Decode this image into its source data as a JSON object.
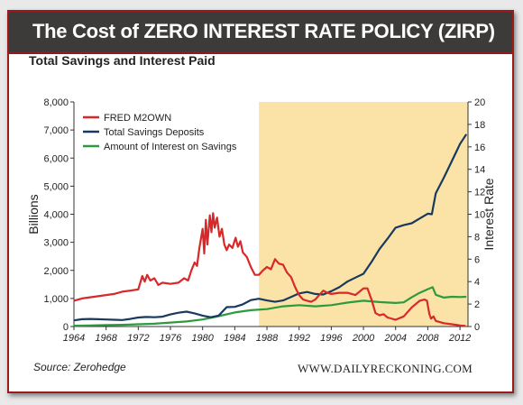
{
  "header": {
    "title": "The Cost of ZERO INTEREST RATE POLICY (ZIRP)"
  },
  "chart_data": {
    "type": "line",
    "title": "Total Savings and Interest Paid",
    "ylabel": "Billions",
    "y2label": "Interest Rate",
    "xlim": [
      1964,
      2013
    ],
    "ylim": [
      0,
      8000
    ],
    "y2lim": [
      0,
      20
    ],
    "x_ticks": [
      "1964",
      "1968",
      "1972",
      "1976",
      "1980",
      "1984",
      "1988",
      "1992",
      "1996",
      "2000",
      "2004",
      "2008",
      "2012"
    ],
    "y_ticks": [
      "0",
      "1,000",
      "2,000",
      "3,000",
      "4,000",
      "5,000",
      "6,000",
      "7,000",
      "8,000"
    ],
    "y2_ticks": [
      "0",
      "2",
      "4",
      "6",
      "8",
      "10",
      "12",
      "14",
      "16",
      "18",
      "20"
    ],
    "highlight": {
      "from": 1987,
      "to": 2013,
      "color": "#fbe3a8"
    },
    "legend_position": "top-left",
    "series": [
      {
        "name": "FRED M2OWN",
        "color": "#d8282a",
        "axis": "right",
        "points": [
          [
            1964,
            2.3
          ],
          [
            1965,
            2.5
          ],
          [
            1966,
            2.6
          ],
          [
            1967,
            2.7
          ],
          [
            1968,
            2.8
          ],
          [
            1969,
            2.9
          ],
          [
            1970,
            3.1
          ],
          [
            1971,
            3.2
          ],
          [
            1972,
            3.3
          ],
          [
            1972.5,
            4.5
          ],
          [
            1972.8,
            4.0
          ],
          [
            1973.1,
            4.6
          ],
          [
            1973.5,
            4.1
          ],
          [
            1974,
            4.3
          ],
          [
            1974.5,
            3.7
          ],
          [
            1975,
            3.9
          ],
          [
            1976,
            3.8
          ],
          [
            1977,
            3.9
          ],
          [
            1977.7,
            4.3
          ],
          [
            1978.2,
            4.1
          ],
          [
            1978.6,
            5.0
          ],
          [
            1979,
            5.7
          ],
          [
            1979.3,
            5.4
          ],
          [
            1979.6,
            7.0
          ],
          [
            1980,
            8.7
          ],
          [
            1980.2,
            6.5
          ],
          [
            1980.4,
            9.5
          ],
          [
            1980.6,
            7.3
          ],
          [
            1980.9,
            9.9
          ],
          [
            1981.1,
            8.4
          ],
          [
            1981.3,
            10.1
          ],
          [
            1981.5,
            8.8
          ],
          [
            1981.8,
            9.7
          ],
          [
            1982.1,
            8.0
          ],
          [
            1982.4,
            8.7
          ],
          [
            1982.7,
            7.3
          ],
          [
            1983,
            6.8
          ],
          [
            1983.3,
            7.3
          ],
          [
            1983.7,
            7.0
          ],
          [
            1984.1,
            7.9
          ],
          [
            1984.4,
            7.1
          ],
          [
            1984.7,
            7.6
          ],
          [
            1985,
            6.6
          ],
          [
            1985.5,
            6.2
          ],
          [
            1986,
            5.3
          ],
          [
            1986.5,
            4.6
          ],
          [
            1987,
            4.6
          ],
          [
            1987.5,
            5.0
          ],
          [
            1988,
            5.3
          ],
          [
            1988.5,
            5.1
          ],
          [
            1989,
            6.0
          ],
          [
            1989.5,
            5.6
          ],
          [
            1990,
            5.5
          ],
          [
            1990.5,
            4.8
          ],
          [
            1991,
            4.4
          ],
          [
            1991.5,
            3.5
          ],
          [
            1992,
            2.8
          ],
          [
            1992.5,
            2.4
          ],
          [
            1993,
            2.3
          ],
          [
            1993.5,
            2.2
          ],
          [
            1994,
            2.4
          ],
          [
            1994.5,
            2.8
          ],
          [
            1995,
            3.2
          ],
          [
            1995.5,
            3.0
          ],
          [
            1996,
            2.9
          ],
          [
            1997,
            3.0
          ],
          [
            1998,
            3.0
          ],
          [
            1999,
            2.8
          ],
          [
            2000,
            3.4
          ],
          [
            2000.5,
            3.4
          ],
          [
            2001,
            2.4
          ],
          [
            2001.5,
            1.2
          ],
          [
            2002,
            1.0
          ],
          [
            2002.5,
            1.1
          ],
          [
            2003,
            0.8
          ],
          [
            2004,
            0.6
          ],
          [
            2005,
            0.9
          ],
          [
            2006,
            1.7
          ],
          [
            2007,
            2.3
          ],
          [
            2007.6,
            2.4
          ],
          [
            2007.9,
            2.3
          ],
          [
            2008.2,
            1.1
          ],
          [
            2008.4,
            0.7
          ],
          [
            2008.7,
            0.9
          ],
          [
            2009,
            0.5
          ],
          [
            2010,
            0.3
          ],
          [
            2011,
            0.2
          ],
          [
            2012,
            0.1
          ],
          [
            2012.7,
            0.05
          ]
        ]
      },
      {
        "name": "Total Savings Deposits",
        "color": "#173a5e",
        "axis": "left",
        "points": [
          [
            1964,
            220
          ],
          [
            1965,
            260
          ],
          [
            1966,
            270
          ],
          [
            1967,
            260
          ],
          [
            1968,
            250
          ],
          [
            1969,
            240
          ],
          [
            1970,
            230
          ],
          [
            1971,
            270
          ],
          [
            1972,
            320
          ],
          [
            1973,
            340
          ],
          [
            1974,
            330
          ],
          [
            1975,
            350
          ],
          [
            1976,
            430
          ],
          [
            1977,
            490
          ],
          [
            1978,
            530
          ],
          [
            1979,
            470
          ],
          [
            1980,
            390
          ],
          [
            1981,
            330
          ],
          [
            1982,
            390
          ],
          [
            1983,
            690
          ],
          [
            1984,
            700
          ],
          [
            1985,
            790
          ],
          [
            1986,
            940
          ],
          [
            1987,
            990
          ],
          [
            1988,
            930
          ],
          [
            1989,
            880
          ],
          [
            1990,
            930
          ],
          [
            1991,
            1050
          ],
          [
            1992,
            1180
          ],
          [
            1993,
            1230
          ],
          [
            1994,
            1160
          ],
          [
            1995,
            1140
          ],
          [
            1996,
            1260
          ],
          [
            1997,
            1400
          ],
          [
            1998,
            1600
          ],
          [
            1999,
            1740
          ],
          [
            2000,
            1880
          ],
          [
            2001,
            2300
          ],
          [
            2002,
            2760
          ],
          [
            2003,
            3130
          ],
          [
            2004,
            3520
          ],
          [
            2005,
            3610
          ],
          [
            2006,
            3680
          ],
          [
            2007,
            3850
          ],
          [
            2008,
            4020
          ],
          [
            2008.5,
            4000
          ],
          [
            2009,
            4750
          ],
          [
            2010,
            5300
          ],
          [
            2011,
            5900
          ],
          [
            2012,
            6500
          ],
          [
            2012.8,
            6850
          ]
        ]
      },
      {
        "name": "Amount of Interest on Savings",
        "color": "#2e9a3e",
        "axis": "left",
        "points": [
          [
            1964,
            30
          ],
          [
            1966,
            40
          ],
          [
            1968,
            50
          ],
          [
            1970,
            60
          ],
          [
            1972,
            80
          ],
          [
            1974,
            100
          ],
          [
            1976,
            140
          ],
          [
            1978,
            180
          ],
          [
            1980,
            250
          ],
          [
            1982,
            370
          ],
          [
            1984,
            500
          ],
          [
            1986,
            580
          ],
          [
            1988,
            620
          ],
          [
            1990,
            720
          ],
          [
            1992,
            760
          ],
          [
            1994,
            720
          ],
          [
            1996,
            760
          ],
          [
            1998,
            850
          ],
          [
            2000,
            920
          ],
          [
            2002,
            870
          ],
          [
            2004,
            840
          ],
          [
            2005,
            860
          ],
          [
            2006,
            1040
          ],
          [
            2007,
            1200
          ],
          [
            2008,
            1330
          ],
          [
            2008.6,
            1400
          ],
          [
            2009,
            1130
          ],
          [
            2010,
            1030
          ],
          [
            2011,
            1060
          ],
          [
            2012,
            1050
          ],
          [
            2012.8,
            1060
          ]
        ]
      }
    ]
  },
  "footer": {
    "source": "Source: Zerohedge",
    "site": "WWW.DAILYRECKONING.COM"
  }
}
